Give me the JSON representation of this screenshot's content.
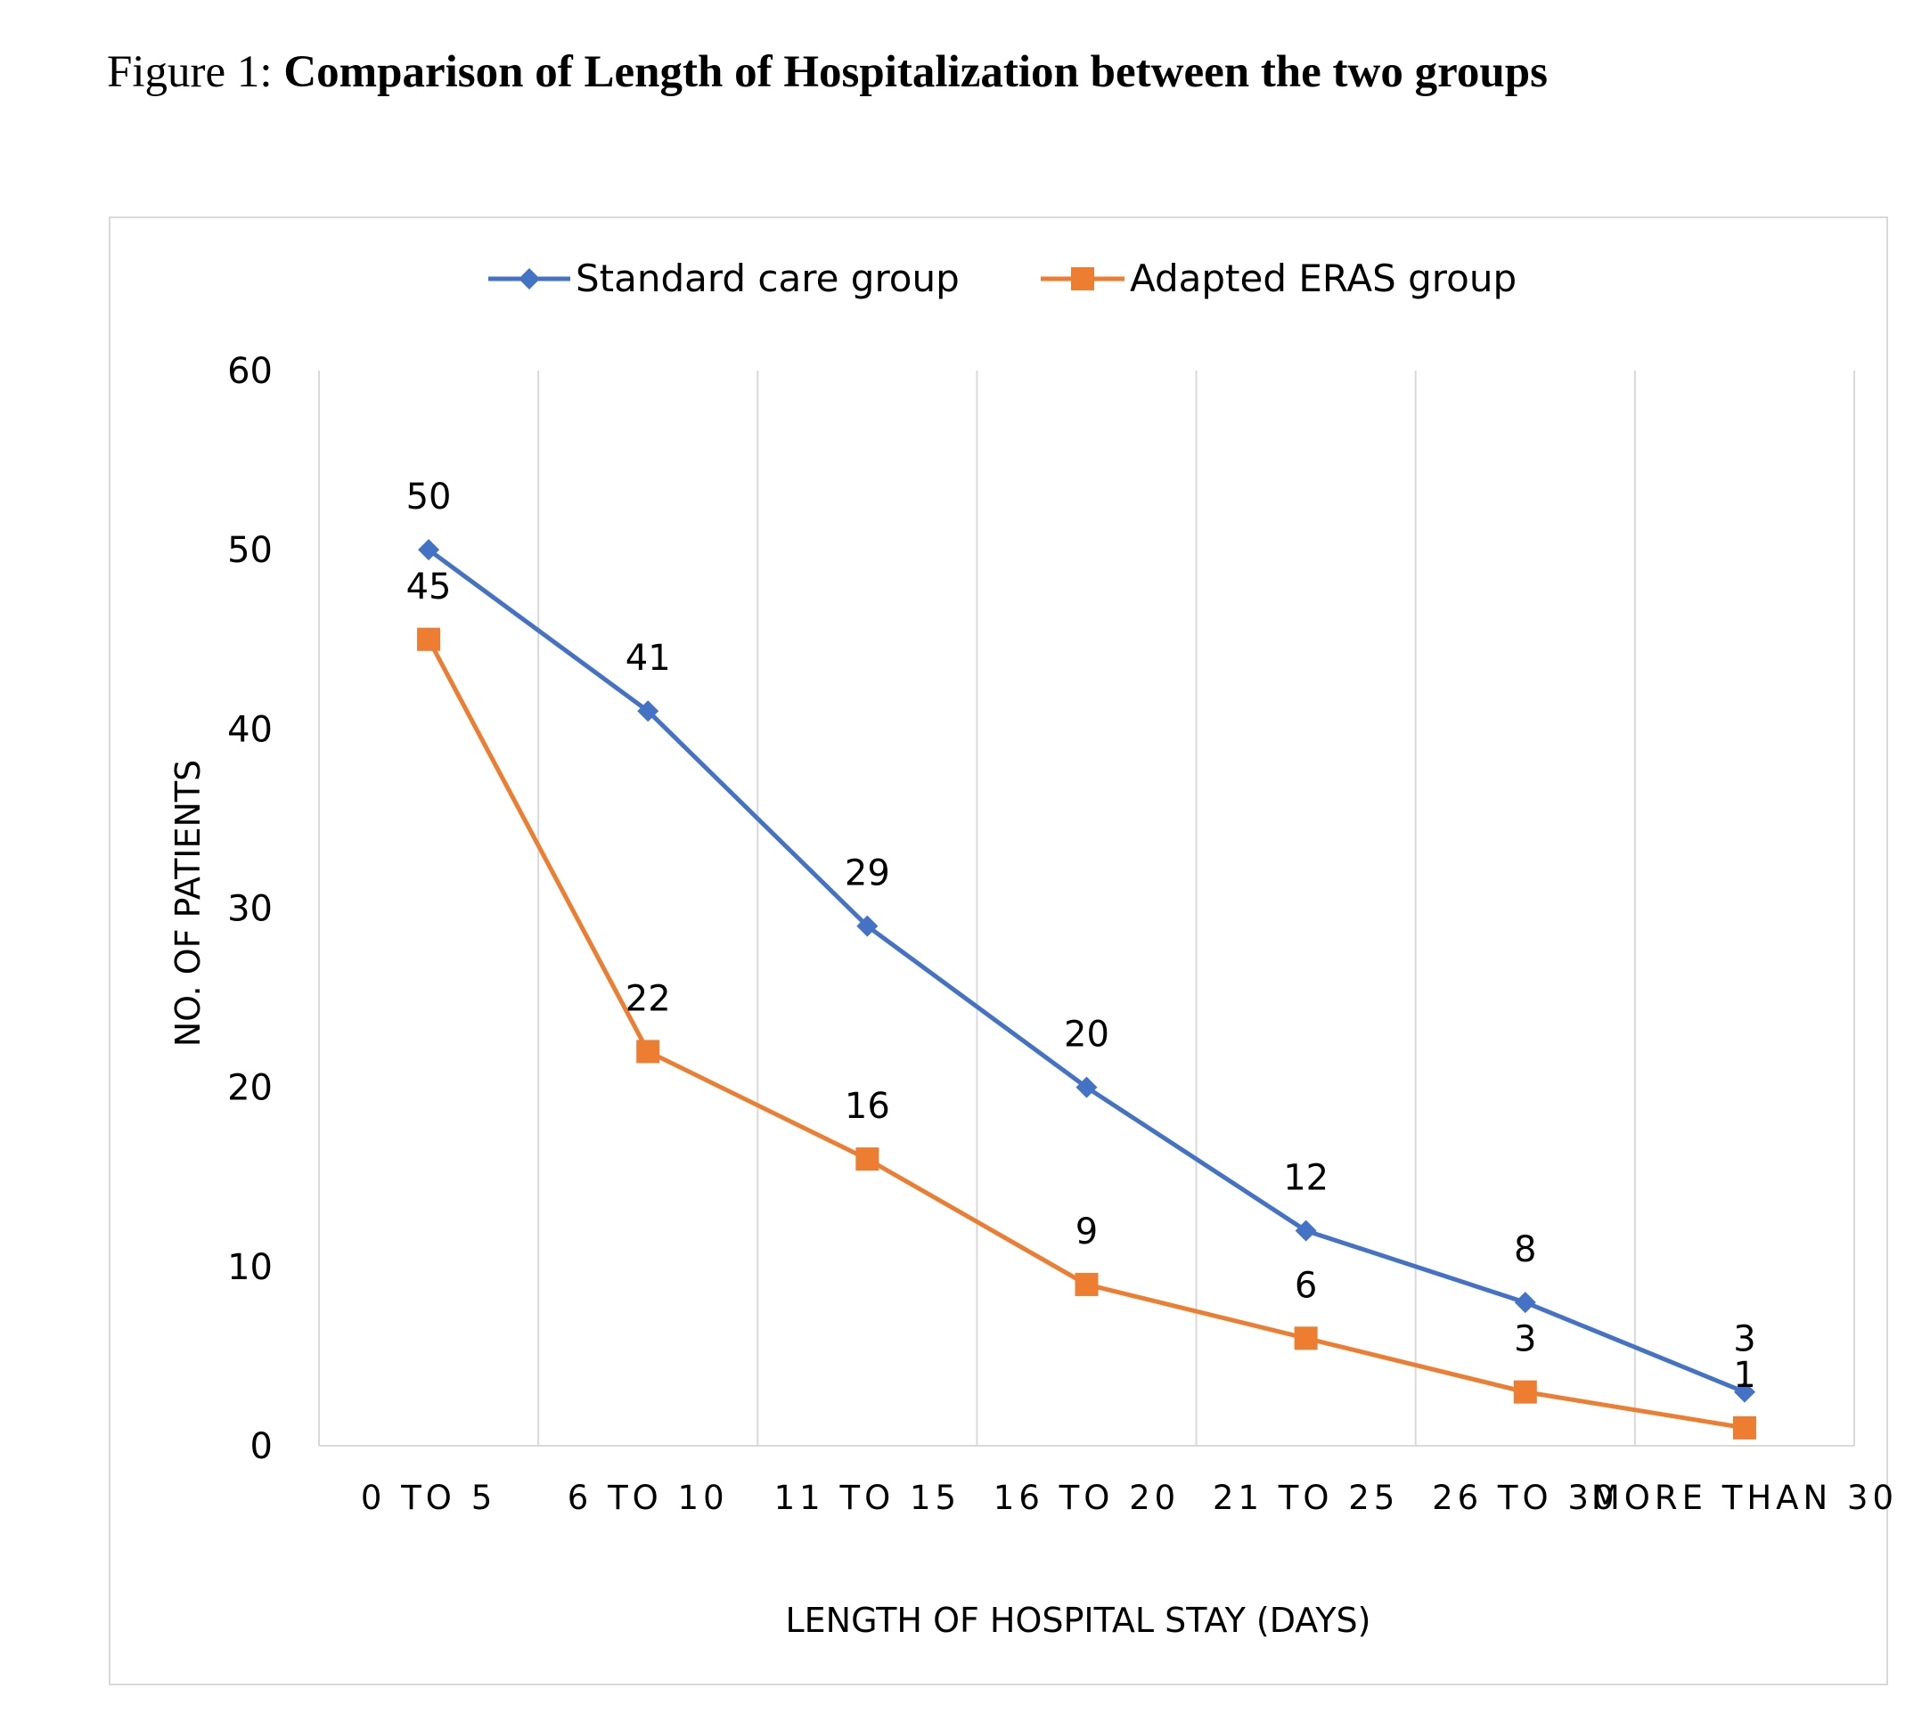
{
  "figure": {
    "prefix": "Figure 1: ",
    "title": "Comparison of Length of Hospitalization between the two groups"
  },
  "chart_data": {
    "type": "line",
    "categories": [
      "0 TO 5",
      "6 TO 10",
      "11 TO 15",
      "16 TO 20",
      "21 TO 25",
      "26 TO 30",
      "MORE THAN 30"
    ],
    "series": [
      {
        "name": "Standard care group",
        "values": [
          50,
          41,
          29,
          20,
          12,
          8,
          3
        ],
        "color": "#4472C4",
        "marker": "diamond"
      },
      {
        "name": "Adapted ERAS group",
        "values": [
          45,
          22,
          16,
          9,
          6,
          3,
          1
        ],
        "color": "#ED7D31",
        "marker": "square"
      }
    ],
    "xlabel": "LENGTH OF HOSPITAL STAY (DAYS)",
    "ylabel": "NO. OF PATIENTS",
    "ylim": [
      0,
      60
    ],
    "yticks": [
      0,
      10,
      20,
      30,
      40,
      50,
      60
    ],
    "grid": "vertical",
    "legend": "top-center",
    "data_labels": true
  }
}
